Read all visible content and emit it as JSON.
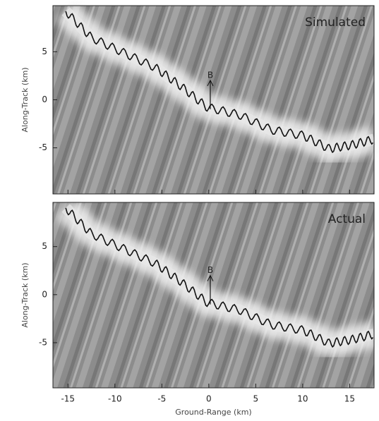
{
  "chart_data": [
    {
      "type": "image",
      "title": "Simulated",
      "annotation": "B",
      "ylabel": "Along-Track (km)",
      "xlim": [
        -16.6,
        17.6
      ],
      "ylim": [
        -9.8,
        9.8
      ],
      "yticks": [
        -5,
        0,
        5
      ]
    },
    {
      "type": "image",
      "title": "Actual",
      "annotation": "B",
      "ylabel": "Along-Track (km)",
      "xlabel": "Ground-Range (km)",
      "xlim": [
        -16.6,
        17.6
      ],
      "ylim": [
        -9.7,
        9.6
      ],
      "yticks": [
        -5,
        0,
        5
      ],
      "xticks": [
        -15,
        -10,
        -5,
        0,
        5,
        10,
        15
      ]
    }
  ]
}
